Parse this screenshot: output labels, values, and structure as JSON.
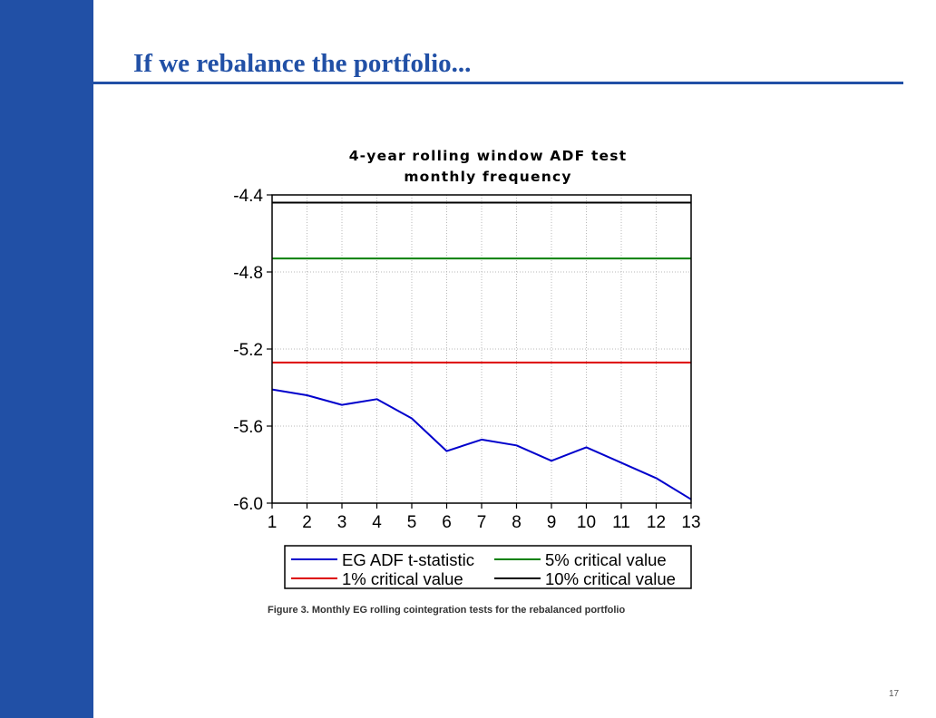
{
  "slide": {
    "title": "If we rebalance the portfolio...",
    "caption": "Figure 3. Monthly EG rolling cointegration tests for the rebalanced portfolio",
    "page_number": "17"
  },
  "colors": {
    "sidebar": "#2150a6",
    "title": "#2150a6",
    "eg_adf": "#0000cc",
    "cv5": "#008000",
    "cv1": "#dd0000",
    "cv10": "#000000"
  },
  "chart_data": {
    "type": "line",
    "title": [
      "4-year rolling window ADF test",
      "monthly frequency"
    ],
    "xlabel": "",
    "ylabel": "",
    "x": [
      1,
      2,
      3,
      4,
      5,
      6,
      7,
      8,
      9,
      10,
      11,
      12,
      13
    ],
    "x_tick_labels": [
      "1",
      "2",
      "3",
      "4",
      "5",
      "6",
      "7",
      "8",
      "9",
      "10",
      "11",
      "12",
      "13"
    ],
    "ylim": [
      -6.0,
      -4.4
    ],
    "y_ticks": [
      -6.0,
      -5.6,
      -5.2,
      -4.8,
      -4.4
    ],
    "y_tick_labels": [
      "-6.0",
      "-5.6",
      "-5.2",
      "-4.8",
      "-4.4"
    ],
    "grid": true,
    "legend_position": "bottom",
    "series": [
      {
        "name": "EG ADF t-statistic",
        "color": "#0000cc",
        "values": [
          -5.41,
          -5.44,
          -5.49,
          -5.46,
          -5.56,
          -5.73,
          -5.67,
          -5.7,
          -5.78,
          -5.71,
          -5.79,
          -5.87,
          -5.98
        ]
      },
      {
        "name": "5% critical value",
        "color": "#008000",
        "values": [
          -4.73,
          -4.73,
          -4.73,
          -4.73,
          -4.73,
          -4.73,
          -4.73,
          -4.73,
          -4.73,
          -4.73,
          -4.73,
          -4.73,
          -4.73
        ]
      },
      {
        "name": "1% critical value",
        "color": "#dd0000",
        "values": [
          -5.27,
          -5.27,
          -5.27,
          -5.27,
          -5.27,
          -5.27,
          -5.27,
          -5.27,
          -5.27,
          -5.27,
          -5.27,
          -5.27,
          -5.27
        ]
      },
      {
        "name": "10% critical value",
        "color": "#000000",
        "values": [
          -4.44,
          -4.44,
          -4.44,
          -4.44,
          -4.44,
          -4.44,
          -4.44,
          -4.44,
          -4.44,
          -4.44,
          -4.44,
          -4.44,
          -4.44
        ]
      }
    ]
  }
}
